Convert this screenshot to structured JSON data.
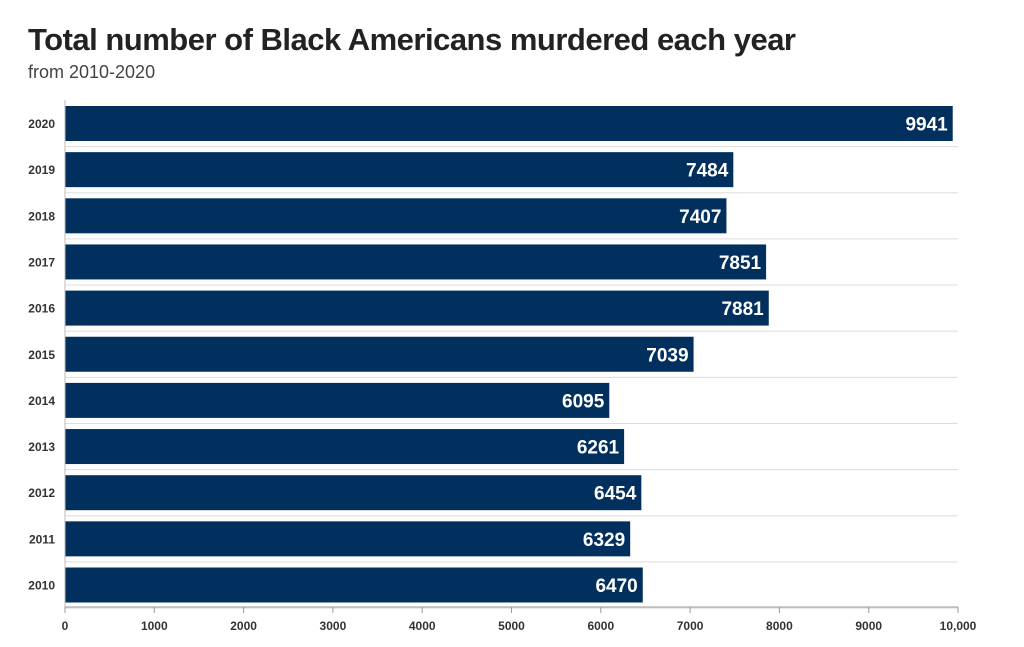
{
  "chart_data": {
    "type": "bar",
    "orientation": "horizontal",
    "title": "Total number of Black Americans murdered each year",
    "subtitle": "from 2010-2020",
    "categories": [
      "2020",
      "2019",
      "2018",
      "2017",
      "2016",
      "2015",
      "2014",
      "2013",
      "2012",
      "2011",
      "2010"
    ],
    "values": [
      9941,
      7484,
      7407,
      7851,
      7881,
      7039,
      6095,
      6261,
      6454,
      6329,
      6470
    ],
    "value_labels": [
      "9941",
      "7484",
      "7407",
      "7851",
      "7881",
      "7039",
      "6095",
      "6261",
      "6454",
      "6329",
      "6470"
    ],
    "xlim": [
      0,
      10000
    ],
    "x_ticks": [
      0,
      1000,
      2000,
      3000,
      4000,
      5000,
      6000,
      7000,
      8000,
      9000,
      10000
    ],
    "x_tick_labels": [
      "0",
      "1000",
      "2000",
      "3000",
      "4000",
      "5000",
      "6000",
      "7000",
      "8000",
      "9000",
      "10,000"
    ],
    "xlabel": "",
    "ylabel": "",
    "grid": true,
    "bar_color": "#02305e",
    "label_color": "#ffffff"
  }
}
